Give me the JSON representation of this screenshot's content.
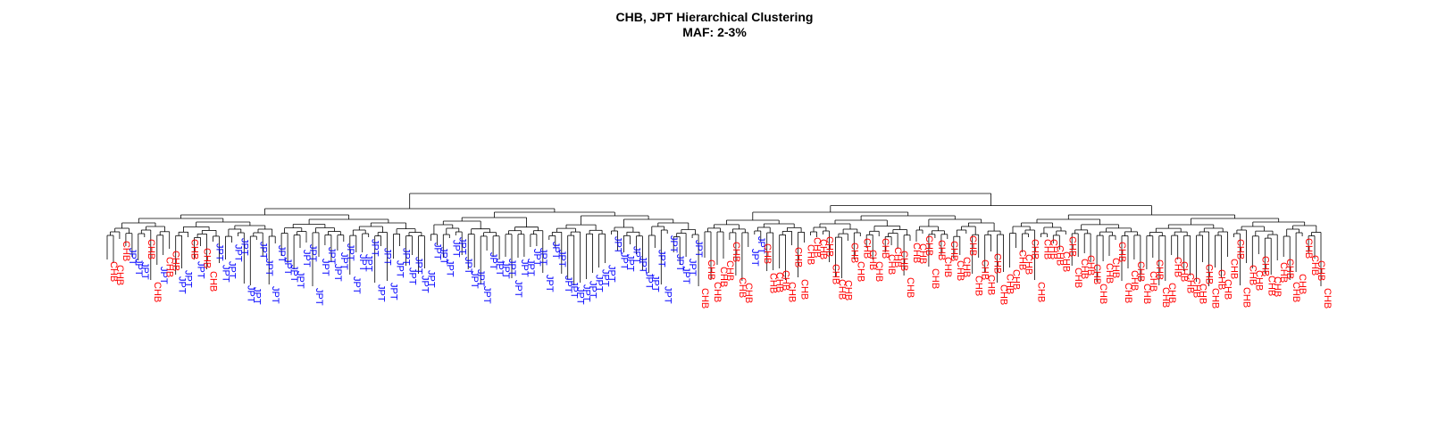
{
  "title": "CHB, JPT Hierarchical Clustering",
  "subtitle": "MAF: 2-3%",
  "populations": {
    "CHB": {
      "label": "CHB",
      "color": "#ff0000"
    },
    "JPT": {
      "label": "JPT",
      "color": "#0000ff"
    }
  },
  "leaves": [
    "CHB",
    "CHB",
    "CHB",
    "JPT",
    "JPT",
    "JPT",
    "CHB",
    "CHB",
    "JPT",
    "CHB",
    "CHB",
    "JPT",
    "JPT",
    "CHB",
    "JPT",
    "CHB",
    "CHB",
    "JPT",
    "JPT",
    "JPT",
    "JPT",
    "JPT",
    "JPT",
    "JPT",
    "JPT",
    "JPT",
    "JPT",
    "JPT",
    "JPT",
    "JPT",
    "JPT",
    "JPT",
    "JPT",
    "JPT",
    "JPT",
    "JPT",
    "JPT",
    "JPT",
    "JPT",
    "JPT",
    "JPT",
    "JPT",
    "JPT",
    "JPT",
    "JPT",
    "JPT",
    "JPT",
    "JPT",
    "JPT",
    "JPT",
    "JPT",
    "JPT",
    "JPT",
    "JPT",
    "JPT",
    "JPT",
    "JPT",
    "JPT",
    "JPT",
    "JPT",
    "JPT",
    "JPT",
    "JPT",
    "JPT",
    "JPT",
    "JPT",
    "JPT",
    "JPT",
    "JPT",
    "JPT",
    "JPT",
    "JPT",
    "JPT",
    "JPT",
    "JPT",
    "JPT",
    "JPT",
    "JPT",
    "JPT",
    "JPT",
    "JPT",
    "JPT",
    "JPT",
    "JPT",
    "JPT",
    "JPT",
    "JPT",
    "JPT",
    "JPT",
    "JPT",
    "JPT",
    "JPT",
    "JPT",
    "JPT",
    "JPT",
    "CHB",
    "CHB",
    "CHB",
    "CHB",
    "CHB",
    "CHB",
    "CHB",
    "CHB",
    "JPT",
    "JPT",
    "CHB",
    "CHB",
    "CHB",
    "CHB",
    "CHB",
    "CHB",
    "CHB",
    "CHB",
    "CHB",
    "CHB",
    "CHB",
    "CHB",
    "CHB",
    "CHB",
    "CHB",
    "CHB",
    "CHB",
    "CHB",
    "CHB",
    "CHB",
    "CHB",
    "CHB",
    "CHB",
    "CHB",
    "CHB",
    "CHB",
    "CHB",
    "CHB",
    "CHB",
    "CHB",
    "CHB",
    "CHB",
    "CHB",
    "CHB",
    "CHB",
    "CHB",
    "CHB",
    "CHB",
    "CHB",
    "CHB",
    "CHB",
    "CHB",
    "CHB",
    "CHB",
    "CHB",
    "CHB",
    "CHB",
    "CHB",
    "CHB",
    "CHB",
    "CHB",
    "CHB",
    "CHB",
    "CHB",
    "CHB",
    "CHB",
    "CHB",
    "CHB",
    "CHB",
    "CHB",
    "CHB",
    "CHB",
    "CHB",
    "CHB",
    "CHB",
    "CHB",
    "CHB",
    "CHB",
    "CHB",
    "CHB",
    "CHB",
    "CHB",
    "CHB",
    "CHB",
    "CHB",
    "CHB",
    "CHB",
    "CHB",
    "CHB",
    "CHB",
    "CHB",
    "CHB",
    "CHB",
    "CHB",
    "CHB",
    "CHB",
    "CHB",
    "CHB",
    "CHB",
    "CHB",
    "CHB"
  ]
}
